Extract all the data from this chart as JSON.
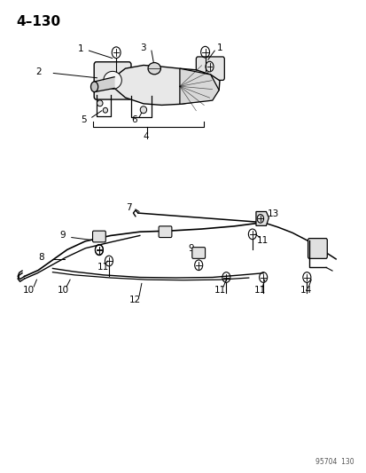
{
  "title": "4–130",
  "background_color": "#ffffff",
  "fig_width": 4.14,
  "fig_height": 5.33,
  "dpi": 100,
  "watermark": "95704  130",
  "line_color": "#000000",
  "text_color": "#000000",
  "label_fontsize": 7.5,
  "title_fontsize": 11
}
